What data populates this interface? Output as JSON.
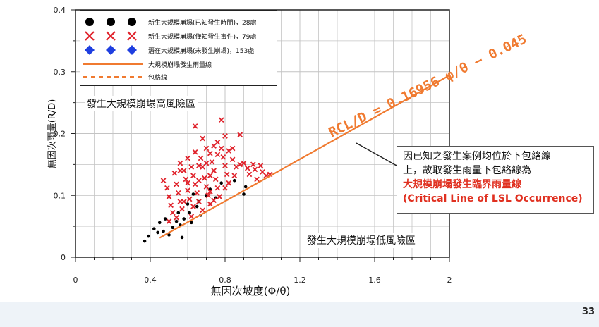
{
  "chart_data": {
    "type": "scatter",
    "xlabel": "無因次坡度(Φ/θ)",
    "ylabel": "無因次雨量(R/D)",
    "xlim": [
      0,
      2
    ],
    "ylim": [
      0,
      0.4
    ],
    "x_ticks": [
      "0",
      "0.4",
      "0.8",
      "1.2",
      "1.6",
      "2"
    ],
    "y_ticks": [
      "0",
      "0.1",
      "0.2",
      "0.3",
      "0.4"
    ],
    "grid": true,
    "legend_position": "top-left",
    "legend": [
      {
        "label": "新生大規模崩塌(已知發生時間)，28處",
        "marker": "circle",
        "color": "#000000"
      },
      {
        "label": "新生大規模崩塌(僅知發生事件)，79處",
        "marker": "x",
        "color": "#e0222b"
      },
      {
        "label": "潛在大規模崩塌(未發生崩塌)，153處",
        "marker": "diamond",
        "color": "#1f3fe0"
      },
      {
        "label": "大規模崩塌發生雨量線",
        "marker": "solid-line",
        "color": "#f07a30"
      },
      {
        "label": "包絡線",
        "marker": "dashed-line",
        "color": "#f07a30"
      }
    ],
    "annotations": {
      "equation": "RCL/D = 0.16956 φ/θ − 0.045",
      "high_risk": "發生大規模崩塌高風險區",
      "low_risk": "發生大規模崩塌低風險區"
    },
    "critical_line": {
      "slope": 0.16956,
      "intercept": -0.045,
      "x_range": [
        0.45,
        2.0
      ]
    },
    "series": [
      {
        "name": "新生大規模崩塌(已知發生時間)，28處",
        "marker": "circle",
        "color": "#000000",
        "points": [
          [
            0.37,
            0.026
          ],
          [
            0.39,
            0.034
          ],
          [
            0.42,
            0.046
          ],
          [
            0.44,
            0.04
          ],
          [
            0.45,
            0.056
          ],
          [
            0.47,
            0.042
          ],
          [
            0.48,
            0.062
          ],
          [
            0.5,
            0.036
          ],
          [
            0.52,
            0.048
          ],
          [
            0.54,
            0.058
          ],
          [
            0.55,
            0.072
          ],
          [
            0.56,
            0.052
          ],
          [
            0.57,
            0.032
          ],
          [
            0.58,
            0.062
          ],
          [
            0.6,
            0.086
          ],
          [
            0.61,
            0.072
          ],
          [
            0.62,
            0.056
          ],
          [
            0.63,
            0.102
          ],
          [
            0.65,
            0.082
          ],
          [
            0.66,
            0.09
          ],
          [
            0.67,
            0.068
          ],
          [
            0.7,
            0.1
          ],
          [
            0.72,
            0.11
          ],
          [
            0.75,
            0.096
          ],
          [
            0.78,
            0.12
          ],
          [
            0.85,
            0.124
          ],
          [
            0.9,
            0.102
          ],
          [
            0.91,
            0.114
          ]
        ]
      },
      {
        "name": "新生大規模崩塌(僅知發生事件)，79處",
        "marker": "x",
        "color": "#e0222b",
        "points": [
          [
            0.47,
            0.124
          ],
          [
            0.49,
            0.112
          ],
          [
            0.5,
            0.098
          ],
          [
            0.51,
            0.084
          ],
          [
            0.52,
            0.072
          ],
          [
            0.53,
            0.136
          ],
          [
            0.54,
            0.118
          ],
          [
            0.55,
            0.104
          ],
          [
            0.56,
            0.09
          ],
          [
            0.57,
            0.078
          ],
          [
            0.56,
            0.152
          ],
          [
            0.58,
            0.14
          ],
          [
            0.59,
            0.126
          ],
          [
            0.6,
            0.108
          ],
          [
            0.61,
            0.094
          ],
          [
            0.6,
            0.16
          ],
          [
            0.62,
            0.146
          ],
          [
            0.63,
            0.132
          ],
          [
            0.64,
            0.118
          ],
          [
            0.65,
            0.104
          ],
          [
            0.66,
            0.09
          ],
          [
            0.64,
            0.212
          ],
          [
            0.67,
            0.16
          ],
          [
            0.68,
            0.146
          ],
          [
            0.69,
            0.128
          ],
          [
            0.7,
            0.114
          ],
          [
            0.71,
            0.1
          ],
          [
            0.72,
            0.086
          ],
          [
            0.7,
            0.176
          ],
          [
            0.72,
            0.168
          ],
          [
            0.73,
            0.154
          ],
          [
            0.74,
            0.14
          ],
          [
            0.75,
            0.126
          ],
          [
            0.76,
            0.112
          ],
          [
            0.77,
            0.098
          ],
          [
            0.76,
            0.186
          ],
          [
            0.78,
            0.176
          ],
          [
            0.79,
            0.162
          ],
          [
            0.8,
            0.148
          ],
          [
            0.81,
            0.134
          ],
          [
            0.82,
            0.12
          ],
          [
            0.78,
            0.222
          ],
          [
            0.8,
            0.196
          ],
          [
            0.82,
            0.172
          ],
          [
            0.84,
            0.158
          ],
          [
            0.86,
            0.146
          ],
          [
            0.85,
            0.132
          ],
          [
            0.88,
            0.198
          ],
          [
            0.9,
            0.152
          ],
          [
            0.92,
            0.144
          ],
          [
            0.93,
            0.134
          ],
          [
            0.95,
            0.15
          ],
          [
            0.96,
            0.142
          ],
          [
            0.97,
            0.126
          ],
          [
            0.99,
            0.148
          ],
          [
            1.0,
            0.138
          ],
          [
            1.02,
            0.132
          ],
          [
            1.04,
            0.134
          ],
          [
            0.88,
            0.15
          ],
          [
            0.74,
            0.092
          ],
          [
            0.68,
            0.076
          ],
          [
            0.62,
            0.066
          ],
          [
            0.58,
            0.09
          ],
          [
            0.54,
            0.064
          ],
          [
            0.5,
            0.058
          ],
          [
            0.72,
            0.132
          ],
          [
            0.66,
            0.124
          ],
          [
            0.7,
            0.152
          ],
          [
            0.76,
            0.166
          ],
          [
            0.8,
            0.112
          ],
          [
            0.84,
            0.176
          ],
          [
            0.74,
            0.18
          ],
          [
            0.66,
            0.148
          ],
          [
            0.6,
            0.12
          ],
          [
            0.56,
            0.14
          ],
          [
            0.64,
            0.17
          ],
          [
            0.68,
            0.192
          ],
          [
            0.72,
            0.106
          ],
          [
            0.63,
            0.082
          ]
        ]
      }
    ]
  },
  "callout": {
    "line1": "因已知之發生案例均位於下包絡線",
    "line2": "上，故取發生雨量下包絡線為",
    "line3": "大規模崩塌發生臨界雨量線",
    "line4": "(Critical Line of LSL Occurrence)"
  },
  "page_number": "33",
  "colors": {
    "critical_line": "#f07a30",
    "axis": "#222222",
    "grid": "#b5b5b5",
    "callout_highlight": "#e03020"
  }
}
